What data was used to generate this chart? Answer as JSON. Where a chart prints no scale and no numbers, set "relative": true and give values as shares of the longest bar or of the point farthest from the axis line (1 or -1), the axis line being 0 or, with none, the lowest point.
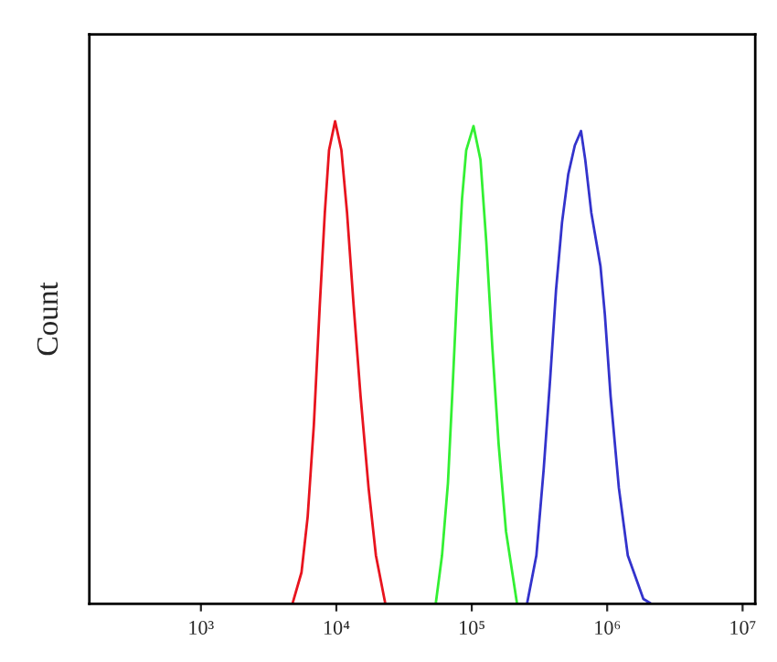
{
  "chart_data": {
    "type": "line",
    "ylabel": "Count",
    "relative": true,
    "log": "x",
    "grid": false,
    "marker": "none",
    "line_style": "solid",
    "xlim": [
      150,
      12400000
    ],
    "xticks": [
      {
        "value": 1000,
        "label": "10³"
      },
      {
        "value": 10000,
        "label": "10⁴"
      },
      {
        "value": 100000,
        "label": "10⁵"
      },
      {
        "value": 1000000,
        "label": "10⁶"
      },
      {
        "value": 10000000,
        "label": "10⁷"
      }
    ],
    "series": [
      {
        "color": "#e8141e",
        "x": [
          4740,
          5530,
          6140,
          6820,
          7550,
          8220,
          8830,
          9790,
          10900,
          12000,
          13400,
          15100,
          17300,
          19600,
          23000
        ],
        "values": [
          0,
          0.065,
          0.18,
          0.37,
          0.62,
          0.81,
          0.94,
          1.0,
          0.94,
          0.81,
          0.62,
          0.43,
          0.24,
          0.1,
          0
        ]
      },
      {
        "color": "#33f033",
        "x": [
          54200,
          60300,
          66700,
          71700,
          78000,
          84800,
          91000,
          103000,
          116000,
          128000,
          142000,
          158000,
          179000,
          216000
        ],
        "values": [
          0,
          0.1,
          0.25,
          0.43,
          0.65,
          0.84,
          0.94,
          0.99,
          0.92,
          0.75,
          0.53,
          0.33,
          0.15,
          0
        ]
      },
      {
        "color": "#3333cc",
        "x": [
          256000,
          300000,
          340000,
          378000,
          419000,
          464000,
          516000,
          577000,
          641000,
          689000,
          764000,
          892000,
          961000,
          1060000,
          1220000,
          1420000,
          1850000,
          2110000
        ],
        "values": [
          0,
          0.1,
          0.28,
          0.46,
          0.65,
          0.79,
          0.89,
          0.95,
          0.98,
          0.92,
          0.81,
          0.7,
          0.6,
          0.43,
          0.24,
          0.1,
          0.01,
          0
        ]
      }
    ]
  }
}
